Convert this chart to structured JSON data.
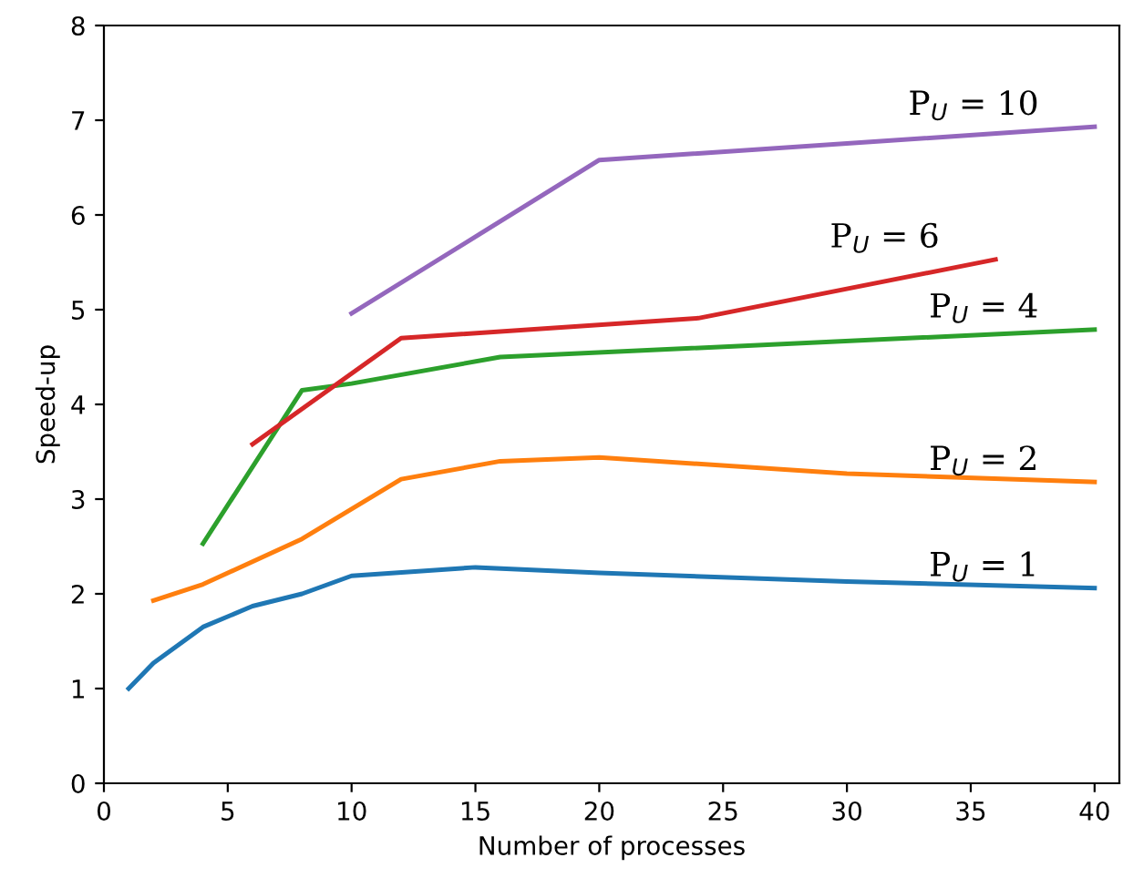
{
  "chart_data": {
    "type": "line",
    "xlabel": "Number of processes",
    "ylabel": "Speed-up",
    "xlim": [
      0,
      41
    ],
    "ylim": [
      0,
      8
    ],
    "xticks": [
      0,
      5,
      10,
      15,
      20,
      25,
      30,
      35,
      40
    ],
    "yticks": [
      0,
      1,
      2,
      3,
      4,
      5,
      6,
      7,
      8
    ],
    "grid": false,
    "legend": false,
    "series": [
      {
        "name": "P$_{U}$ = 1",
        "color": "#1f77b4",
        "x": [
          1,
          2,
          4,
          6,
          8,
          10,
          15,
          20,
          30,
          40
        ],
        "values": [
          1.0,
          1.27,
          1.65,
          1.87,
          2.0,
          2.19,
          2.28,
          2.22,
          2.13,
          2.06
        ]
      },
      {
        "name": "P$_{U}$ = 2",
        "color": "#ff7f0e",
        "x": [
          2,
          4,
          8,
          12,
          16,
          20,
          30,
          40
        ],
        "values": [
          1.93,
          2.1,
          2.58,
          3.21,
          3.4,
          3.44,
          3.27,
          3.18
        ]
      },
      {
        "name": "P$_{U}$ = 4",
        "color": "#2ca02c",
        "x": [
          4,
          8,
          10,
          16,
          40
        ],
        "values": [
          2.53,
          4.15,
          4.22,
          4.5,
          4.79
        ]
      },
      {
        "name": "P$_{U}$ = 6",
        "color": "#d62728",
        "x": [
          6,
          12,
          24,
          36
        ],
        "values": [
          3.58,
          4.7,
          4.91,
          5.53
        ]
      },
      {
        "name": "P$_{U}$ = 10",
        "color": "#9467bd",
        "x": [
          10,
          20,
          40
        ],
        "values": [
          4.96,
          6.58,
          6.93
        ]
      }
    ]
  }
}
